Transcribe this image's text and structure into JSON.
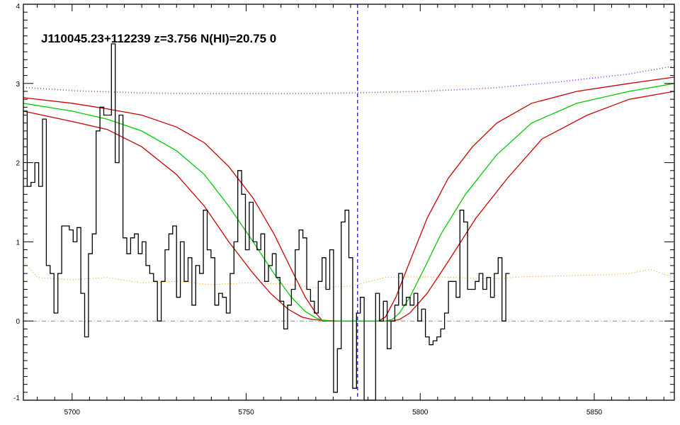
{
  "chart_data": {
    "type": "line",
    "title": "J110045.23+112239 z=3.756 N(HI)=20.75 0",
    "xlabel": "",
    "ylabel": "",
    "xlim": [
      5686,
      5873
    ],
    "ylim": [
      -1,
      4
    ],
    "x_ticks": [
      5700,
      5750,
      5800,
      5850
    ],
    "y_ticks": [
      -1,
      0,
      1,
      2,
      3,
      4
    ],
    "x_tick_labels": [
      "5700",
      "5750",
      "5800",
      "5850"
    ],
    "y_tick_labels": [
      "-1",
      "0",
      "1",
      "2",
      "3",
      "4"
    ],
    "grid": false,
    "legend": "none",
    "line_center": 5782,
    "colors": {
      "flux": "#000000",
      "fit": "#00cc00",
      "fit_bounds": "#cc0000",
      "continuum": "#8a2be2",
      "error": "#ff8c00",
      "center_marker": "#0000cc",
      "zero_line": "#888888"
    },
    "series": [
      {
        "role": "flux",
        "x_start": 5686,
        "x_step": 1.1,
        "values": [
          2.65,
          1.7,
          1.75,
          2.0,
          1.7,
          2.55,
          0.7,
          0.6,
          0.1,
          0.6,
          1.2,
          1.2,
          1.15,
          1.0,
          1.18,
          0.35,
          -0.2,
          0.85,
          1.1,
          2.4,
          2.7,
          2.6,
          2.6,
          3.5,
          2.0,
          2.6,
          1.05,
          0.85,
          1.05,
          1.1,
          0.85,
          1.0,
          0.7,
          0.6,
          0.5,
          0.0,
          0.5,
          0.9,
          1.1,
          1.2,
          0.3,
          1.0,
          0.5,
          0.8,
          0.2,
          0.7,
          0.6,
          1.4,
          0.9,
          0.8,
          0.2,
          0.35,
          0.3,
          0.1,
          0.6,
          1.0,
          1.9,
          1.6,
          0.9,
          1.5,
          1.0,
          0.9,
          1.1,
          0.5,
          0.7,
          0.85,
          0.55,
          0.25,
          -0.1,
          0.2,
          0.4,
          0.9,
          1.15,
          1.05,
          0.4,
          0.25,
          0.1,
          0.5,
          0.8,
          0.4,
          0.9,
          -0.9,
          -0.35,
          1.25,
          1.4,
          0.8,
          -0.85,
          0.1,
          0.3,
          -1.3,
          -1.0,
          -1.15,
          0.35,
          0.0,
          0.25,
          -0.35,
          0.0,
          0.2,
          0.6,
          0.2,
          0.3,
          0.2,
          0.35,
          0.0,
          0.15,
          -0.2,
          -0.3,
          -0.25,
          -0.2,
          -0.1,
          0.1,
          0.5,
          0.5,
          0.3,
          1.4,
          1.25,
          0.4,
          0.4,
          0.5,
          0.6,
          0.4,
          0.55,
          0.3,
          0.6,
          0.8,
          0.0,
          0.6
        ]
      },
      {
        "role": "fit",
        "x": [
          5686,
          5700,
          5710,
          5720,
          5730,
          5738,
          5745,
          5752,
          5758,
          5763,
          5767,
          5770,
          5772,
          5774,
          5790,
          5792,
          5794,
          5797,
          5801,
          5806,
          5813,
          5822,
          5832,
          5845,
          5860,
          5873
        ],
        "values": [
          2.75,
          2.65,
          2.55,
          2.4,
          2.15,
          1.85,
          1.45,
          1.0,
          0.6,
          0.3,
          0.12,
          0.04,
          0.01,
          0.0,
          0.0,
          0.02,
          0.1,
          0.3,
          0.65,
          1.1,
          1.6,
          2.1,
          2.5,
          2.75,
          2.9,
          3.0
        ]
      },
      {
        "role": "fit_upper",
        "x": [
          5686,
          5700,
          5710,
          5720,
          5730,
          5738,
          5745,
          5752,
          5758,
          5763,
          5767,
          5770,
          5772,
          5788,
          5790,
          5793,
          5797,
          5802,
          5808,
          5815,
          5822,
          5832,
          5845,
          5860,
          5873
        ],
        "values": [
          2.82,
          2.75,
          2.68,
          2.6,
          2.45,
          2.25,
          1.95,
          1.55,
          1.1,
          0.65,
          0.3,
          0.1,
          0.0,
          0.0,
          0.05,
          0.3,
          0.75,
          1.3,
          1.8,
          2.2,
          2.5,
          2.75,
          2.9,
          3.0,
          3.08
        ]
      },
      {
        "role": "fit_lower",
        "x": [
          5686,
          5700,
          5710,
          5720,
          5730,
          5738,
          5745,
          5752,
          5757,
          5762,
          5766,
          5769,
          5772,
          5776,
          5792,
          5794,
          5797,
          5802,
          5808,
          5816,
          5825,
          5835,
          5848,
          5860,
          5873
        ],
        "values": [
          2.65,
          2.52,
          2.42,
          2.2,
          1.85,
          1.45,
          1.0,
          0.6,
          0.35,
          0.15,
          0.05,
          0.02,
          0.01,
          0.0,
          0.0,
          0.02,
          0.1,
          0.35,
          0.75,
          1.3,
          1.8,
          2.3,
          2.6,
          2.8,
          2.9
        ]
      },
      {
        "role": "continuum",
        "x": [
          5686,
          5700,
          5720,
          5740,
          5760,
          5780,
          5800,
          5820,
          5840,
          5860,
          5873
        ],
        "values": [
          2.95,
          2.91,
          2.88,
          2.87,
          2.87,
          2.88,
          2.9,
          2.94,
          3.02,
          3.12,
          3.22
        ]
      },
      {
        "role": "error",
        "x": [
          5686,
          5690,
          5700,
          5710,
          5720,
          5730,
          5740,
          5750,
          5760,
          5770,
          5780,
          5790,
          5800,
          5810,
          5820,
          5830,
          5840,
          5850,
          5860,
          5866,
          5873
        ],
        "values": [
          0.75,
          0.55,
          0.52,
          0.55,
          0.48,
          0.5,
          0.46,
          0.48,
          0.47,
          0.42,
          0.44,
          0.55,
          0.56,
          0.55,
          0.53,
          0.56,
          0.57,
          0.58,
          0.6,
          0.65,
          0.55
        ]
      }
    ]
  }
}
